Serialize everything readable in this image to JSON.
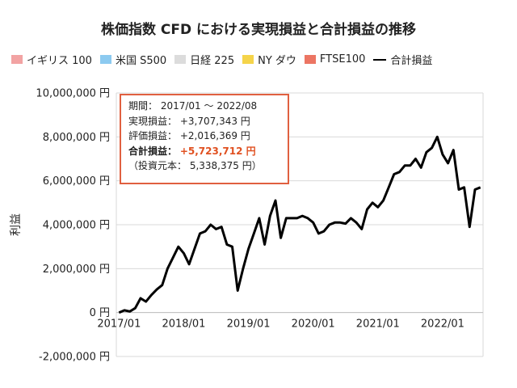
{
  "chart_data": {
    "type": "bar+line",
    "title": "株価指数 CFD における実現損益と合計損益の推移",
    "ylabel": "利益",
    "ylim": [
      -2000000,
      10000000
    ],
    "yticks": [
      -2000000,
      0,
      2000000,
      4000000,
      6000000,
      8000000,
      10000000
    ],
    "ytick_labels": [
      "-2,000,000 円",
      "0 円",
      "2,000,000 円",
      "4,000,000 円",
      "6,000,000 円",
      "8,000,000 円",
      "10,000,000 円"
    ],
    "xtick_labels": [
      "2017/01",
      "2018/01",
      "2019/01",
      "2020/01",
      "2021/01",
      "2022/01"
    ],
    "grid": true,
    "legend_position": "top",
    "x": [
      "2017/01",
      "2017/02",
      "2017/03",
      "2017/04",
      "2017/05",
      "2017/06",
      "2017/07",
      "2017/08",
      "2017/09",
      "2017/10",
      "2017/11",
      "2017/12",
      "2018/01",
      "2018/02",
      "2018/03",
      "2018/04",
      "2018/05",
      "2018/06",
      "2018/07",
      "2018/08",
      "2018/09",
      "2018/10",
      "2018/11",
      "2018/12",
      "2019/01",
      "2019/02",
      "2019/03",
      "2019/04",
      "2019/05",
      "2019/06",
      "2019/07",
      "2019/08",
      "2019/09",
      "2019/10",
      "2019/11",
      "2019/12",
      "2020/01",
      "2020/02",
      "2020/03",
      "2020/04",
      "2020/05",
      "2020/06",
      "2020/07",
      "2020/08",
      "2020/09",
      "2020/10",
      "2020/11",
      "2020/12",
      "2021/01",
      "2021/02",
      "2021/03",
      "2021/04",
      "2021/05",
      "2021/06",
      "2021/07",
      "2021/08",
      "2021/09",
      "2021/10",
      "2021/11",
      "2021/12",
      "2022/01",
      "2022/02",
      "2022/03",
      "2022/04",
      "2022/05",
      "2022/06",
      "2022/07",
      "2022/08"
    ],
    "series": [
      {
        "name": "イギリス 100",
        "kind": "bar",
        "color": "#f2a3a3",
        "values": [
          0,
          0,
          0,
          0,
          0,
          0,
          0,
          0,
          0,
          0,
          0,
          0,
          0,
          0,
          0,
          0,
          0,
          0,
          0,
          0,
          0,
          0,
          0,
          0,
          0,
          0,
          0,
          0,
          0,
          0,
          0,
          0,
          0,
          0,
          0,
          0,
          0,
          0,
          0,
          0,
          0,
          0,
          0,
          0,
          0,
          0,
          0,
          0,
          0,
          0,
          0,
          0,
          0,
          0,
          0,
          0,
          0,
          0,
          0,
          0,
          0,
          0,
          0,
          0,
          0,
          0,
          0,
          0
        ]
      },
      {
        "name": "米国 S500",
        "kind": "bar",
        "color": "#8ccaf0",
        "values": [
          0,
          0,
          0,
          0,
          0,
          0,
          0,
          0,
          0,
          0,
          0,
          0,
          0,
          0,
          0,
          0,
          0,
          0,
          0,
          0,
          0,
          0,
          0,
          0,
          0,
          0,
          0,
          0,
          0,
          0,
          0,
          0,
          0,
          0,
          0,
          0,
          0,
          0,
          0,
          0,
          0,
          0,
          0,
          0,
          0,
          0,
          0,
          0,
          0,
          0,
          0,
          0,
          0,
          0,
          0,
          0,
          0,
          0,
          0,
          0,
          0,
          0,
          0,
          0,
          0,
          0,
          0,
          0
        ]
      },
      {
        "name": "日経 225",
        "kind": "bar",
        "color": "#dcdcdc",
        "values": [
          0,
          0,
          0,
          0,
          0,
          0,
          0,
          0,
          0,
          0,
          0,
          0,
          0,
          0,
          0,
          0,
          0,
          0,
          0,
          0,
          0,
          0,
          0,
          0,
          0,
          0,
          0,
          0,
          0,
          0,
          0,
          0,
          0,
          0,
          0,
          0,
          0,
          0,
          0,
          0,
          0,
          0,
          0,
          0,
          0,
          0,
          0,
          0,
          0,
          0,
          0,
          0,
          0,
          0,
          0,
          0,
          0,
          0,
          0,
          0,
          0,
          0,
          0,
          0,
          0,
          0,
          0,
          0
        ]
      },
      {
        "name": "NY ダウ",
        "kind": "bar",
        "color": "#f5d44a",
        "values": [
          0,
          0,
          0,
          0,
          0,
          0,
          0,
          0,
          0,
          0,
          0,
          0,
          0,
          0,
          0,
          0,
          0,
          0,
          0,
          0,
          0,
          0,
          0,
          0,
          0,
          0,
          0,
          0,
          0,
          0,
          0,
          0,
          0,
          0,
          0,
          0,
          0,
          0,
          0,
          0,
          0,
          0,
          0,
          0,
          0,
          0,
          0,
          0,
          0,
          0,
          0,
          0,
          0,
          0,
          0,
          0,
          0,
          0,
          0,
          0,
          0,
          0,
          0,
          0,
          0,
          0,
          0,
          0
        ]
      },
      {
        "name": "FTSE100",
        "kind": "bar",
        "color": "#ec7563",
        "values": [
          0,
          0,
          0,
          0,
          0,
          0,
          0,
          0,
          0,
          0,
          0,
          0,
          0,
          0,
          0,
          0,
          0,
          0,
          0,
          0,
          0,
          0,
          0,
          0,
          0,
          0,
          0,
          0,
          0,
          0,
          0,
          0,
          0,
          0,
          0,
          0,
          0,
          0,
          0,
          0,
          0,
          0,
          0,
          0,
          0,
          0,
          0,
          0,
          0,
          0,
          0,
          0,
          0,
          0,
          0,
          0,
          0,
          0,
          0,
          0,
          0,
          0,
          0,
          0,
          0,
          0,
          0,
          0
        ]
      },
      {
        "name": "合計損益",
        "kind": "line",
        "color": "#000000",
        "values": [
          0,
          100000,
          50000,
          200000,
          650000,
          500000,
          800000,
          1050000,
          1250000,
          2000000,
          2500000,
          3000000,
          2700000,
          2200000,
          2900000,
          3600000,
          3700000,
          4000000,
          3800000,
          3900000,
          3100000,
          3000000,
          1000000,
          2000000,
          2900000,
          3600000,
          4300000,
          3100000,
          4400000,
          5100000,
          3400000,
          4300000,
          4300000,
          4300000,
          4400000,
          4300000,
          4100000,
          3600000,
          3700000,
          4000000,
          4100000,
          4100000,
          4050000,
          4300000,
          4100000,
          3800000,
          4700000,
          5000000,
          4800000,
          5100000,
          5700000,
          6300000,
          6400000,
          6700000,
          6700000,
          7000000,
          6600000,
          7300000,
          7500000,
          8000000,
          7200000,
          6800000,
          7400000,
          5600000,
          5700000,
          3900000,
          5600000,
          5700000
        ]
      }
    ]
  },
  "legend": {
    "items": [
      {
        "label": "イギリス 100",
        "color": "#f2a3a3",
        "kind": "swatch"
      },
      {
        "label": "米国 S500",
        "color": "#8ccaf0",
        "kind": "swatch"
      },
      {
        "label": "日経 225",
        "color": "#dcdcdc",
        "kind": "swatch"
      },
      {
        "label": "NY ダウ",
        "color": "#f5d44a",
        "kind": "swatch"
      },
      {
        "label": "FTSE100",
        "color": "#ec7563",
        "kind": "swatch"
      },
      {
        "label": "合計損益",
        "color": "#000000",
        "kind": "line"
      }
    ]
  },
  "info_box": {
    "period_label": "期間：",
    "period_value": "2017/01 ～ 2022/08",
    "realized_label": "実現損益：",
    "realized_value": "+3,707,343 円",
    "unrealized_label": "評価損益：",
    "unrealized_value": "+2,016,369 円",
    "total_label": "合計損益：",
    "total_value": "+5,723,712 円",
    "investment_text": "（投資元本： 5,338,375 円）"
  }
}
